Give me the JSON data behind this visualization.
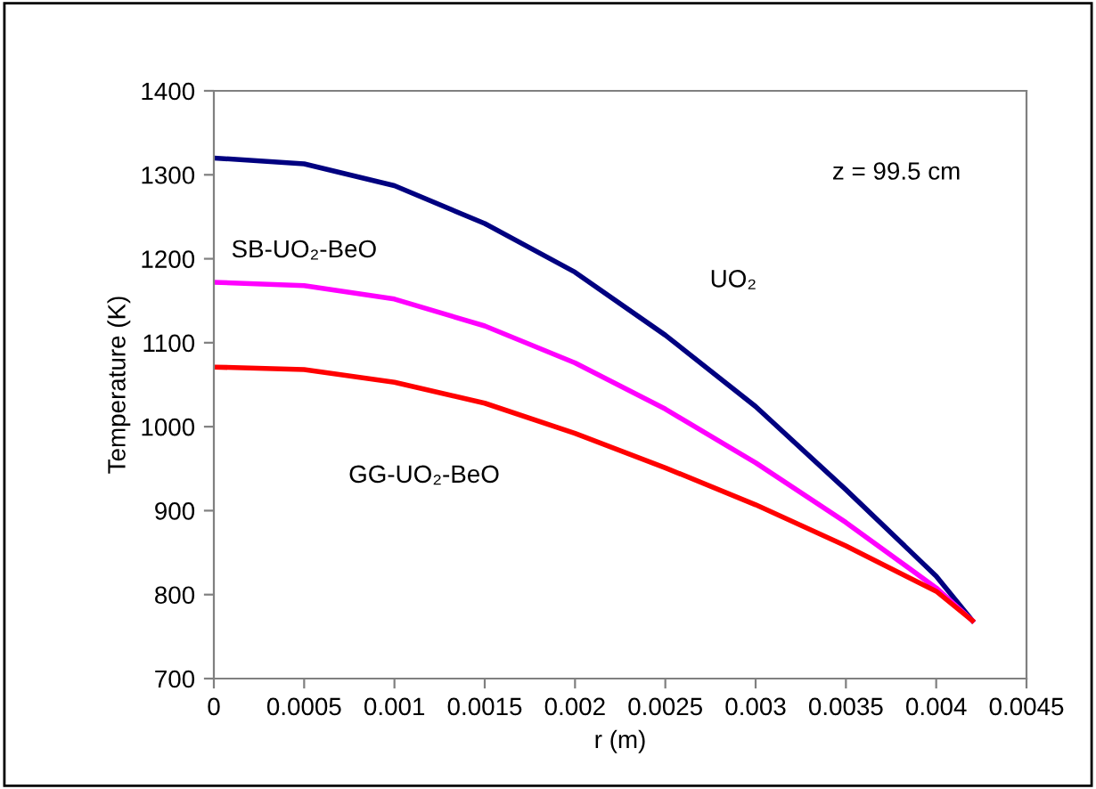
{
  "chart_data": {
    "type": "line",
    "xlabel": "r (m)",
    "ylabel": "Temperature (K)",
    "x": [
      0,
      0.0005,
      0.001,
      0.0015,
      0.002,
      0.0025,
      0.003,
      0.0035,
      0.004,
      0.0042
    ],
    "series": [
      {
        "name": "UO₂",
        "color": "#000080",
        "values": [
          1320,
          1313,
          1287,
          1242,
          1184,
          1109,
          1024,
          925,
          822,
          769
        ]
      },
      {
        "name": "SB-UO₂-BeO",
        "color": "#ff00ff",
        "values": [
          1172,
          1168,
          1152,
          1120,
          1076,
          1021,
          957,
          886,
          808,
          769
        ]
      },
      {
        "name": "GG-UO₂-BeO",
        "color": "#ff0000",
        "values": [
          1071,
          1068,
          1053,
          1028,
          992,
          951,
          907,
          858,
          804,
          769
        ]
      }
    ],
    "annotations": [
      "z = 99.5 cm"
    ],
    "xlim": [
      0,
      0.0045
    ],
    "ylim": [
      700,
      1400
    ],
    "xticks": [
      0,
      0.0005,
      0.001,
      0.0015,
      0.002,
      0.0025,
      0.003,
      0.0035,
      0.004,
      0.0045
    ],
    "yticks": [
      700,
      800,
      900,
      1000,
      1100,
      1200,
      1300,
      1400
    ],
    "grid": false,
    "legend": false,
    "marker": "none",
    "line_style": "solid"
  }
}
